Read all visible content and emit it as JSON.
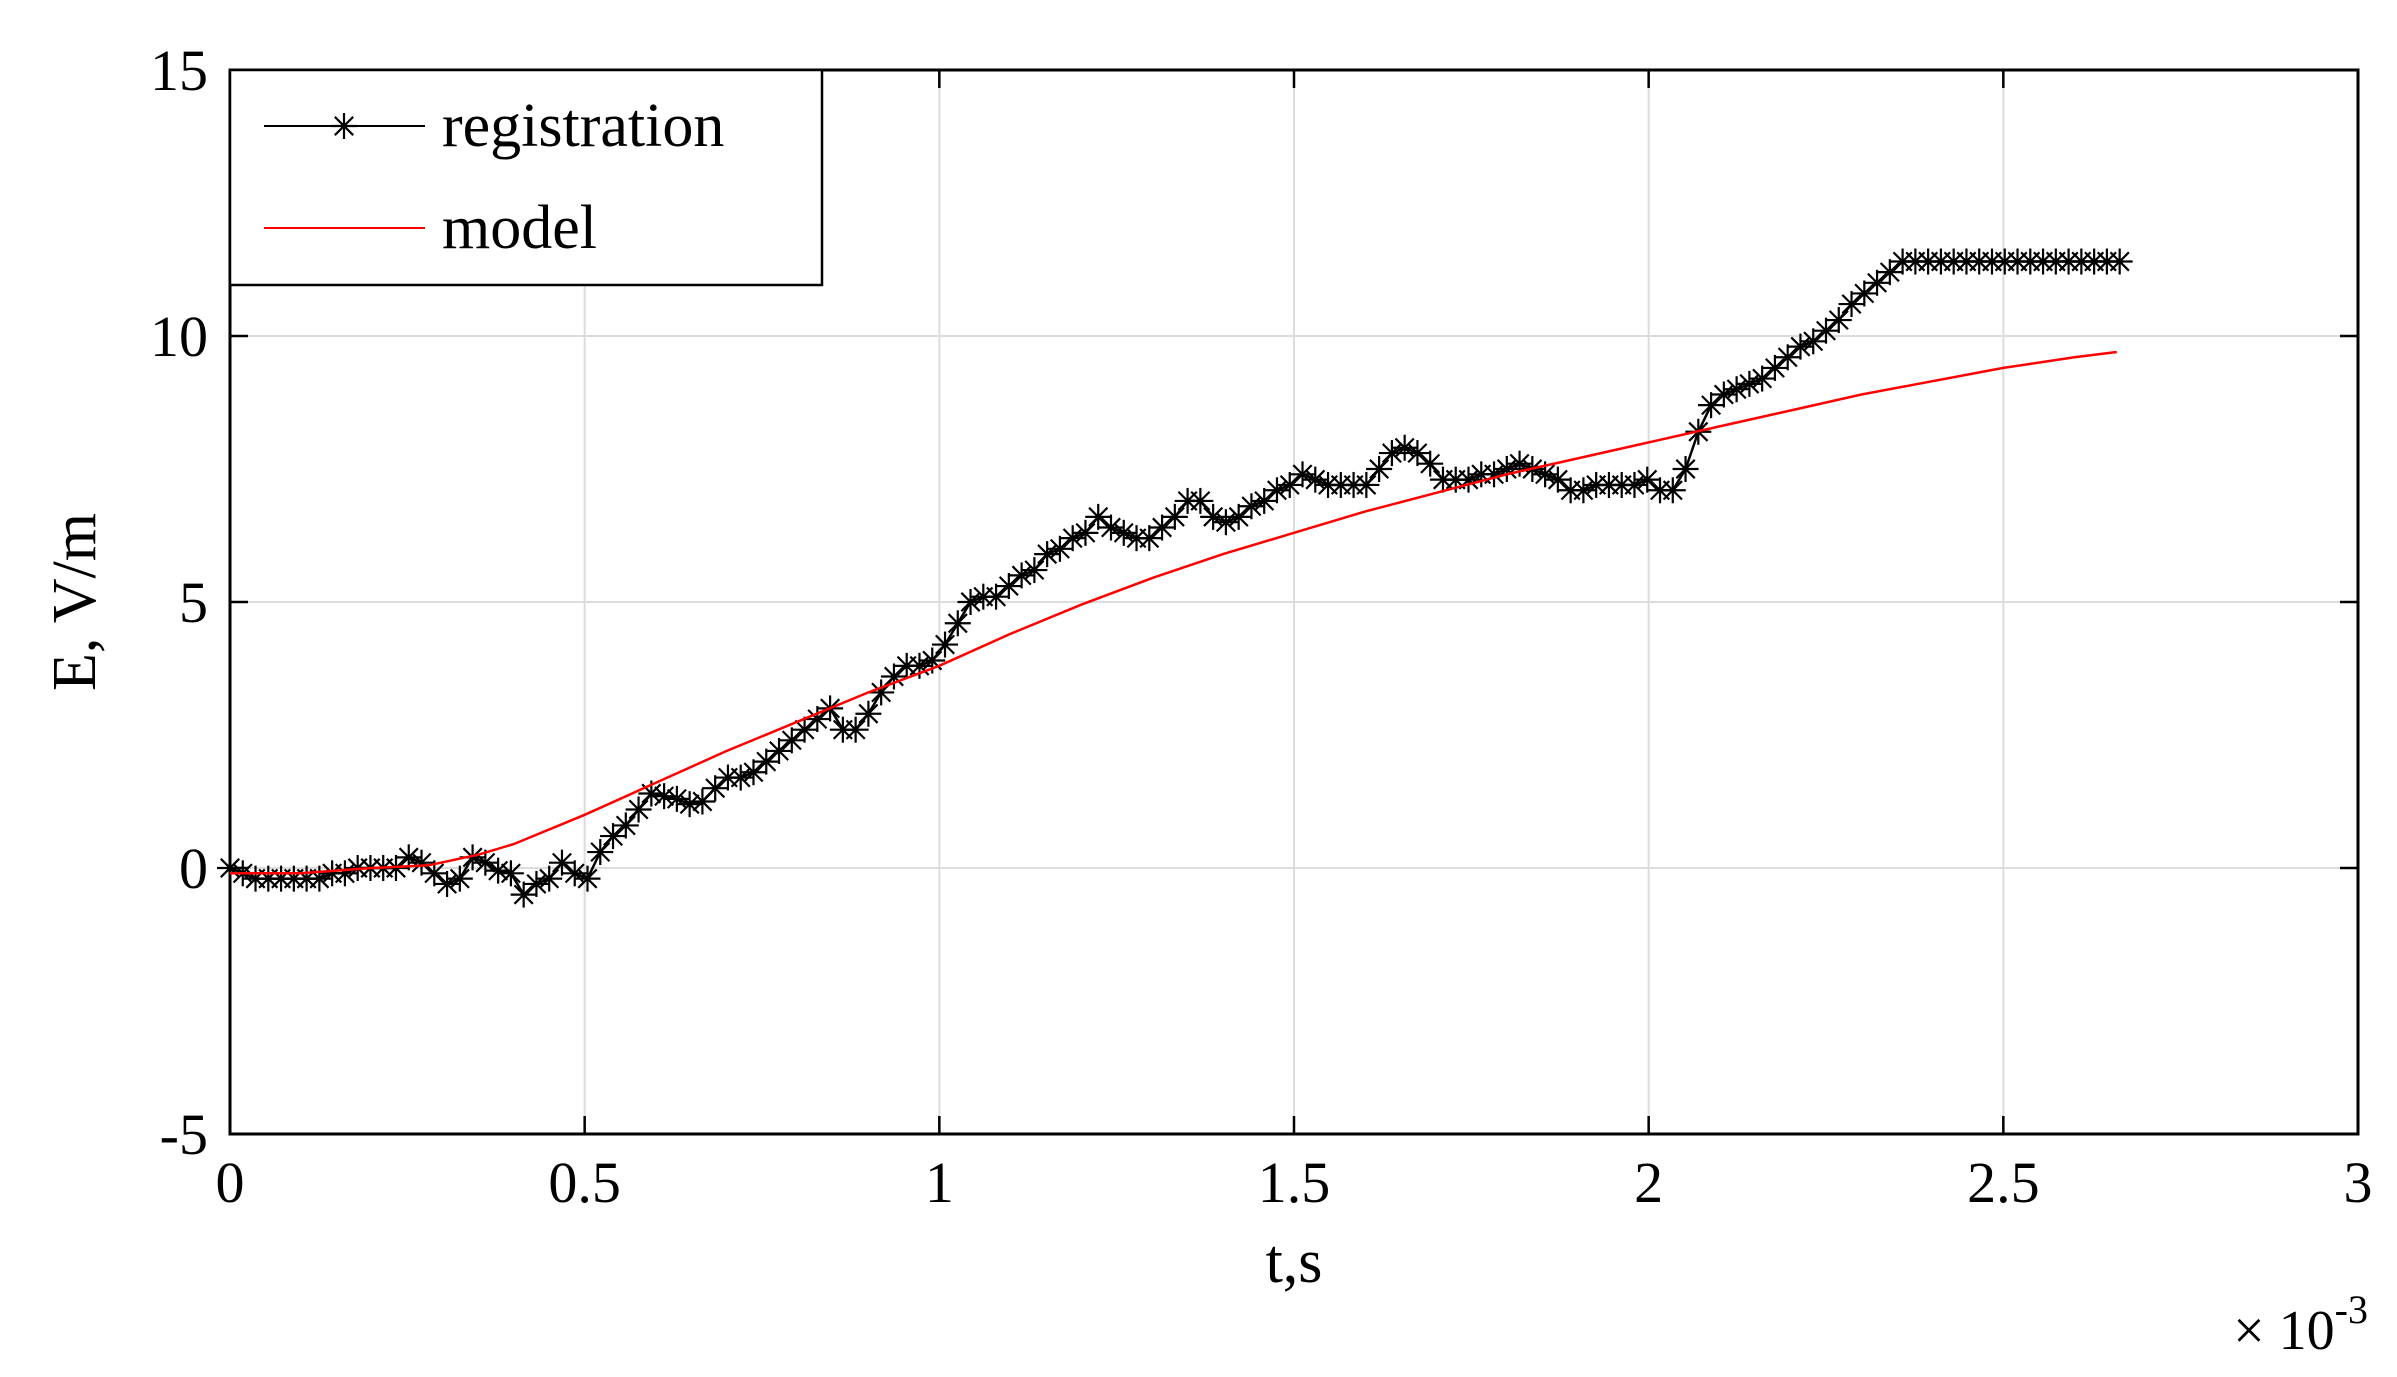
{
  "chart_data": {
    "type": "line",
    "title": "",
    "xlabel": "t,s",
    "ylabel": "E, V/m",
    "x_multiplier_label": "× 10",
    "x_multiplier_exp": "-3",
    "xlim": [
      0,
      3
    ],
    "ylim": [
      -5,
      15
    ],
    "xticks": [
      0,
      0.5,
      1,
      1.5,
      2,
      2.5,
      3
    ],
    "xtick_labels": [
      "0",
      "0.5",
      "1",
      "1.5",
      "2",
      "2.5",
      "3"
    ],
    "yticks": [
      -5,
      0,
      5,
      10,
      15
    ],
    "ytick_labels": [
      "-5",
      "0",
      "5",
      "10",
      "15"
    ],
    "grid": true,
    "legend_position": "top-left",
    "series": [
      {
        "name": "registration",
        "color": "#000000",
        "marker": "asterisk",
        "x": [
          0,
          0.018,
          0.036,
          0.054,
          0.072,
          0.09,
          0.108,
          0.126,
          0.144,
          0.162,
          0.18,
          0.198,
          0.216,
          0.234,
          0.252,
          0.27,
          0.288,
          0.306,
          0.324,
          0.342,
          0.36,
          0.378,
          0.396,
          0.414,
          0.432,
          0.45,
          0.468,
          0.486,
          0.504,
          0.522,
          0.54,
          0.558,
          0.576,
          0.594,
          0.612,
          0.63,
          0.648,
          0.666,
          0.684,
          0.702,
          0.72,
          0.738,
          0.756,
          0.774,
          0.792,
          0.81,
          0.828,
          0.846,
          0.864,
          0.882,
          0.9,
          0.918,
          0.936,
          0.954,
          0.972,
          0.99,
          1.008,
          1.026,
          1.044,
          1.062,
          1.08,
          1.098,
          1.116,
          1.134,
          1.152,
          1.17,
          1.188,
          1.206,
          1.224,
          1.242,
          1.26,
          1.278,
          1.296,
          1.314,
          1.332,
          1.35,
          1.368,
          1.386,
          1.404,
          1.422,
          1.44,
          1.458,
          1.476,
          1.494,
          1.512,
          1.53,
          1.548,
          1.566,
          1.584,
          1.602,
          1.62,
          1.638,
          1.656,
          1.674,
          1.692,
          1.71,
          1.728,
          1.746,
          1.764,
          1.782,
          1.8,
          1.818,
          1.836,
          1.854,
          1.872,
          1.89,
          1.908,
          1.926,
          1.944,
          1.962,
          1.98,
          1.998,
          2.016,
          2.034,
          2.052,
          2.07,
          2.088,
          2.106,
          2.124,
          2.142,
          2.16,
          2.178,
          2.196,
          2.214,
          2.232,
          2.25,
          2.268,
          2.286,
          2.304,
          2.322,
          2.34,
          2.358,
          2.376,
          2.394,
          2.412,
          2.43,
          2.448,
          2.466,
          2.484,
          2.502,
          2.52,
          2.538,
          2.556,
          2.574,
          2.592,
          2.61,
          2.628,
          2.646,
          2.664
        ],
        "y": [
          0,
          -0.1,
          -0.2,
          -0.2,
          -0.2,
          -0.2,
          -0.2,
          -0.2,
          -0.1,
          -0.1,
          0,
          0,
          0,
          0,
          0.2,
          0.1,
          -0.1,
          -0.3,
          -0.2,
          0.2,
          0.1,
          -0.05,
          -0.1,
          -0.5,
          -0.3,
          -0.2,
          0.1,
          -0.1,
          -0.2,
          0.3,
          0.6,
          0.8,
          1.1,
          1.4,
          1.35,
          1.3,
          1.2,
          1.25,
          1.5,
          1.7,
          1.7,
          1.8,
          2,
          2.2,
          2.4,
          2.6,
          2.8,
          3,
          2.6,
          2.6,
          2.9,
          3.3,
          3.6,
          3.8,
          3.8,
          3.9,
          4.2,
          4.6,
          5,
          5.1,
          5.1,
          5.3,
          5.5,
          5.6,
          5.9,
          6,
          6.2,
          6.3,
          6.6,
          6.4,
          6.3,
          6.2,
          6.2,
          6.4,
          6.6,
          6.9,
          6.9,
          6.6,
          6.5,
          6.6,
          6.8,
          6.9,
          7.1,
          7.2,
          7.4,
          7.3,
          7.2,
          7.2,
          7.2,
          7.2,
          7.5,
          7.8,
          7.9,
          7.8,
          7.6,
          7.3,
          7.3,
          7.3,
          7.4,
          7.4,
          7.5,
          7.6,
          7.5,
          7.4,
          7.3,
          7.1,
          7.1,
          7.2,
          7.2,
          7.2,
          7.2,
          7.3,
          7.1,
          7.1,
          7.5,
          8.2,
          8.7,
          8.9,
          9,
          9.1,
          9.2,
          9.4,
          9.6,
          9.8,
          9.9,
          10.1,
          10.3,
          10.6,
          10.8,
          11.0,
          11.2,
          11.4,
          11.4,
          11.4,
          11.4,
          11.4,
          11.4,
          11.4,
          11.4,
          11.4,
          11.4,
          11.4,
          11.4,
          11.4,
          11.4,
          11.4,
          11.4,
          11.4,
          11.4
        ]
      },
      {
        "name": "model",
        "color": "#ff0000",
        "marker": "none",
        "x": [
          0,
          0.1,
          0.2,
          0.28,
          0.35,
          0.4,
          0.5,
          0.6,
          0.7,
          0.8,
          0.9,
          1.0,
          1.1,
          1.2,
          1.3,
          1.4,
          1.5,
          1.6,
          1.7,
          1.8,
          1.9,
          2.0,
          2.1,
          2.2,
          2.3,
          2.4,
          2.5,
          2.6,
          2.66
        ],
        "y": [
          -0.1,
          -0.1,
          0,
          0.05,
          0.25,
          0.45,
          1.0,
          1.6,
          2.2,
          2.75,
          3.3,
          3.8,
          4.4,
          4.95,
          5.45,
          5.9,
          6.3,
          6.7,
          7.05,
          7.4,
          7.7,
          8.0,
          8.3,
          8.6,
          8.9,
          9.15,
          9.4,
          9.6,
          9.7
        ]
      }
    ]
  }
}
